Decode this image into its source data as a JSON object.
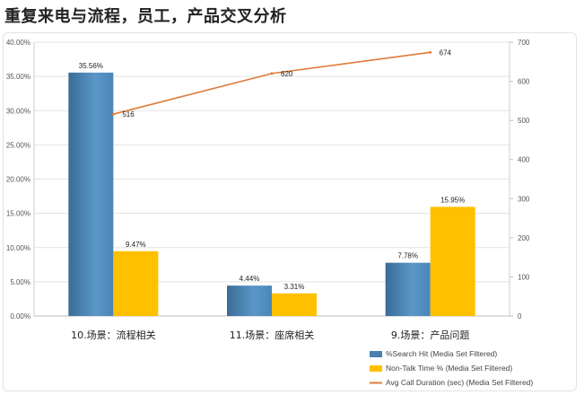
{
  "page": {
    "title": "重复来电与流程，员工，产品交叉分析"
  },
  "chart_data": {
    "type": "bar",
    "categories": [
      "10.场景：流程相关",
      "11.场景：座席相关",
      "9.场景：产品问题"
    ],
    "series": [
      {
        "name": "%Search Hit (Media Set Filtered)",
        "type": "bar",
        "axis": "left",
        "color": "#4a7fae",
        "values": [
          35.56,
          4.44,
          7.78
        ],
        "labels": [
          "35.56%",
          "4.44%",
          "7.78%"
        ]
      },
      {
        "name": "Non-Talk Time % (Media Set Filtered)",
        "type": "bar",
        "axis": "left",
        "color": "#ffc000",
        "values": [
          9.47,
          3.31,
          15.95
        ],
        "labels": [
          "9.47%",
          "3.31%",
          "15.95%"
        ]
      },
      {
        "name": "Avg Call Duration (sec) (Media Set Filtered)",
        "type": "line",
        "axis": "right",
        "color": "#e07b39",
        "points": [
          [
            0,
            516
          ],
          [
            1,
            620
          ],
          [
            2,
            674
          ]
        ],
        "labels": [
          "516",
          "620",
          "674"
        ]
      }
    ],
    "y_left": {
      "min": 0,
      "max": 40,
      "step": 5,
      "ticks": [
        "0.00%",
        "5.00%",
        "10.00%",
        "15.00%",
        "20.00%",
        "25.00%",
        "30.00%",
        "35.00%",
        "40.00%"
      ]
    },
    "y_right": {
      "min": 0,
      "max": 700,
      "step": 100,
      "ticks": [
        "0",
        "100",
        "200",
        "300",
        "400",
        "500",
        "600",
        "700"
      ]
    },
    "legend_position": "bottom-right",
    "grid": true
  }
}
